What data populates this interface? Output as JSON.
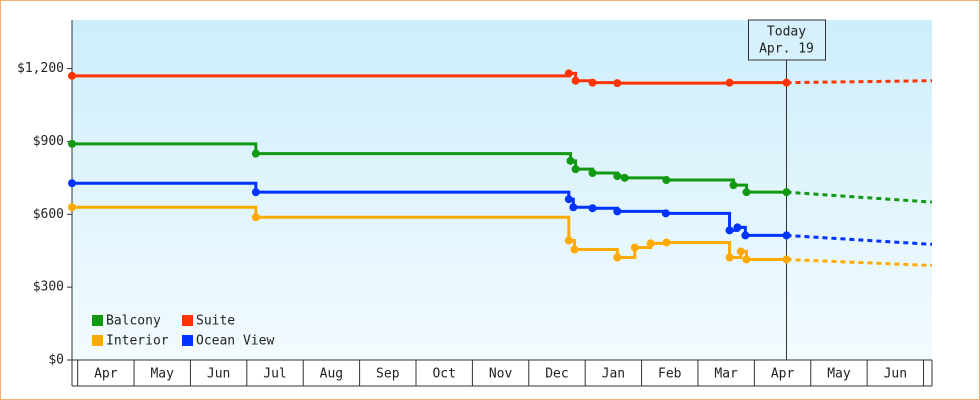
{
  "chart_data": {
    "type": "step-line",
    "ylim": [
      0,
      1400
    ],
    "yticks": [
      {
        "value": 0,
        "label": "$0"
      },
      {
        "value": 300,
        "label": "$300"
      },
      {
        "value": 600,
        "label": "$600"
      },
      {
        "value": 900,
        "label": "$900"
      },
      {
        "value": 1200,
        "label": "$1,200"
      }
    ],
    "xlim": [
      -0.1,
      15.15
    ],
    "xticks": [
      {
        "value": 0.5,
        "label": "Apr"
      },
      {
        "value": 1.5,
        "label": "May"
      },
      {
        "value": 2.5,
        "label": "Jun"
      },
      {
        "value": 3.5,
        "label": "Jul"
      },
      {
        "value": 4.5,
        "label": "Aug"
      },
      {
        "value": 5.5,
        "label": "Sep"
      },
      {
        "value": 6.5,
        "label": "Oct"
      },
      {
        "value": 7.5,
        "label": "Nov"
      },
      {
        "value": 8.5,
        "label": "Dec"
      },
      {
        "value": 9.5,
        "label": "Jan"
      },
      {
        "value": 10.5,
        "label": "Feb"
      },
      {
        "value": 11.5,
        "label": "Mar"
      },
      {
        "value": 12.5,
        "label": "Apr"
      },
      {
        "value": 13.5,
        "label": "May"
      },
      {
        "value": 14.5,
        "label": "Jun"
      }
    ],
    "annotation": {
      "lines": [
        "Today",
        "Apr. 19"
      ],
      "x": 12.57
    },
    "legend": "lower left",
    "series": [
      {
        "name": "Balcony",
        "color": "#119911",
        "x": [
          -0.1,
          3.16,
          8.74,
          8.83,
          9.13,
          9.57,
          9.7,
          10.44,
          11.63,
          11.86,
          12.57,
          15.15
        ],
        "values": [
          890,
          850,
          820,
          786,
          770,
          757,
          750,
          741,
          720,
          691,
          691,
          650
        ]
      },
      {
        "name": "Suite",
        "color": "#ff3300",
        "x": [
          -0.1,
          8.71,
          8.83,
          9.13,
          9.57,
          11.56,
          12.57,
          15.15
        ],
        "values": [
          1170,
          1180,
          1150,
          1142,
          1140,
          1142,
          1142,
          1150
        ]
      },
      {
        "name": "Interior",
        "color": "#ffaa00",
        "x": [
          -0.1,
          3.16,
          8.71,
          8.81,
          9.57,
          9.88,
          10.16,
          10.44,
          11.56,
          11.76,
          11.86,
          12.57,
          15.15
        ],
        "values": [
          629,
          588,
          492,
          455,
          422,
          463,
          480,
          484,
          422,
          447,
          414,
          414,
          389
        ]
      },
      {
        "name": "Ocean View",
        "color": "#0033ff",
        "x": [
          -0.1,
          3.16,
          8.71,
          8.79,
          9.13,
          9.57,
          10.43,
          11.56,
          11.7,
          11.84,
          12.57,
          15.15
        ],
        "values": [
          728,
          691,
          662,
          629,
          625,
          612,
          604,
          534,
          546,
          513,
          513,
          476
        ]
      }
    ]
  }
}
